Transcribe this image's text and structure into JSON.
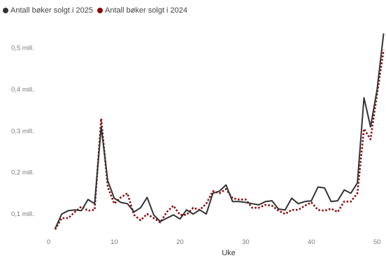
{
  "chart_data": {
    "type": "line",
    "title": "",
    "xlabel": "Uke",
    "ylabel": "",
    "xlim": [
      0,
      51
    ],
    "ylim": [
      0.05,
      0.55
    ],
    "x_ticks": [
      0,
      10,
      20,
      30,
      40,
      50
    ],
    "x_tick_labels": [
      "0",
      "10",
      "20",
      "30",
      "40",
      "50"
    ],
    "y_ticks": [
      0.1,
      0.2,
      0.3,
      0.4,
      0.5
    ],
    "y_tick_labels": [
      "0,1 mill.",
      "0,2 mill.",
      "0,3 mill.",
      "0,4 mill.",
      "0,5 mill."
    ],
    "grid": false,
    "legend_position": "top-left",
    "x": [
      1,
      2,
      3,
      4,
      5,
      6,
      7,
      8,
      9,
      10,
      11,
      12,
      13,
      14,
      15,
      16,
      17,
      18,
      19,
      20,
      21,
      22,
      23,
      24,
      25,
      26,
      27,
      28,
      29,
      30,
      31,
      32,
      33,
      34,
      35,
      36,
      37,
      38,
      39,
      40,
      41,
      42,
      43,
      44,
      45,
      46,
      47,
      48,
      49,
      50,
      51
    ],
    "series": [
      {
        "name": "Antall bøker solgt i 2025",
        "color": "#333333",
        "style": "solid",
        "values": [
          0.065,
          0.1,
          0.108,
          0.11,
          0.108,
          0.135,
          0.125,
          0.31,
          0.18,
          0.138,
          0.128,
          0.125,
          0.105,
          0.115,
          0.14,
          0.098,
          0.082,
          0.09,
          0.098,
          0.088,
          0.11,
          0.1,
          0.11,
          0.1,
          0.15,
          0.155,
          0.17,
          0.13,
          0.13,
          0.128,
          0.125,
          0.122,
          0.13,
          0.132,
          0.112,
          0.11,
          0.138,
          0.125,
          0.13,
          0.132,
          0.165,
          0.163,
          0.13,
          0.132,
          0.158,
          0.15,
          0.175,
          0.38,
          0.31,
          0.4,
          0.535
        ]
      },
      {
        "name": "Antall bøker solgt i 2024",
        "color": "#8b0a0a",
        "style": "dotted",
        "values": [
          0.063,
          0.09,
          0.09,
          0.105,
          0.118,
          0.108,
          0.11,
          0.33,
          0.165,
          0.125,
          0.14,
          0.15,
          0.098,
          0.085,
          0.1,
          0.09,
          0.08,
          0.105,
          0.12,
          0.098,
          0.098,
          0.115,
          0.11,
          0.125,
          0.155,
          0.15,
          0.16,
          0.138,
          0.135,
          0.135,
          0.115,
          0.115,
          0.122,
          0.12,
          0.108,
          0.1,
          0.11,
          0.11,
          0.12,
          0.128,
          0.11,
          0.108,
          0.113,
          0.105,
          0.13,
          0.13,
          0.15,
          0.305,
          0.28,
          0.39,
          0.495
        ]
      }
    ]
  }
}
